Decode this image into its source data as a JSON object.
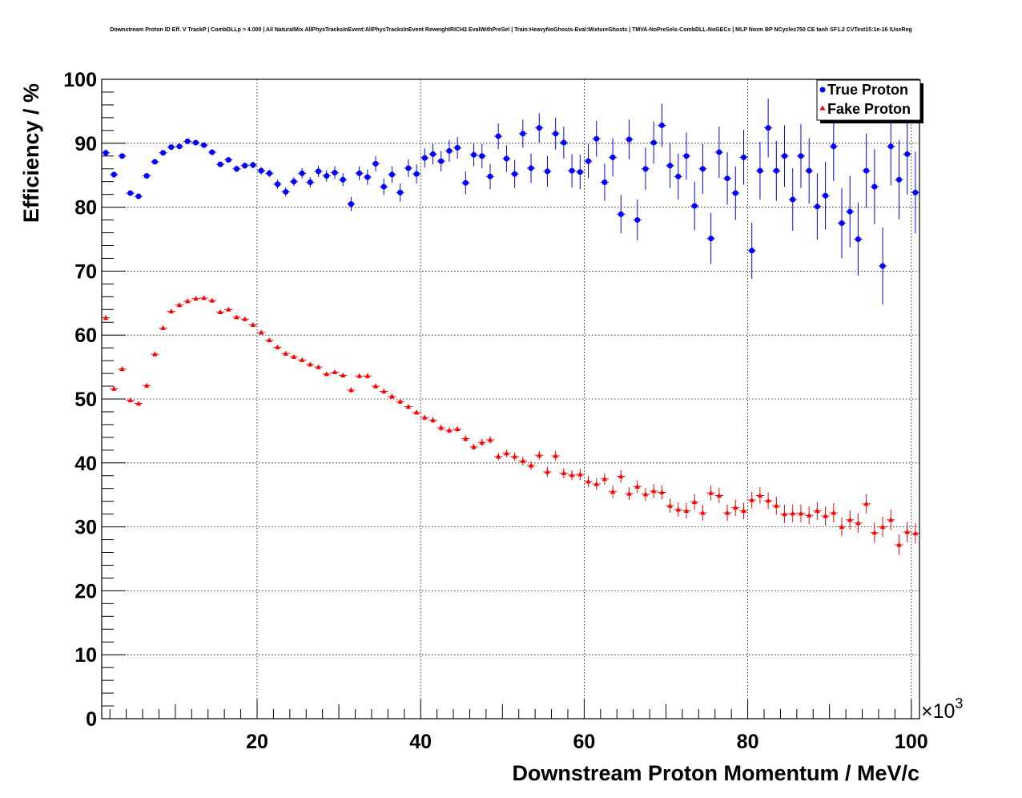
{
  "chart_data": {
    "type": "scatter",
    "title": "Downstream Proton ID Eff. V TrackP | CombDLLp > 4.000 | All NaturalMix AllPhysTracksInEvent:AllPhysTracksInEvent ReweightRICH2 EvalWithPreSel | Train:HeavyNoGhosts-Eval:MixtureGhosts | TMVA-NoPreSels-CombDLL-NoGECs | MLP Norm BP NCycles750 CE tanh SF1.2 CVTest15:1e-16 !UseReg",
    "xlabel": "Downstream Proton Momentum / MeV/c",
    "ylabel": "Efficiency / %",
    "x_multiplier": "×10",
    "x_multiplier_exp": "3",
    "xlim": [
      1000,
      101000
    ],
    "ylim": [
      0,
      100
    ],
    "x_ticks": [
      20000,
      40000,
      60000,
      80000,
      100000
    ],
    "x_tick_labels": [
      "20",
      "40",
      "60",
      "80",
      "100"
    ],
    "y_ticks": [
      0,
      10,
      20,
      30,
      40,
      50,
      60,
      70,
      80,
      90,
      100
    ],
    "y_tick_labels": [
      "0",
      "10",
      "20",
      "30",
      "40",
      "50",
      "60",
      "70",
      "80",
      "90",
      "100"
    ],
    "grid": true,
    "legend_position": "top-right",
    "series": [
      {
        "name": "True Proton",
        "color": "#0000ff",
        "marker": "circle",
        "x": [
          1500,
          2500,
          3500,
          4500,
          5500,
          6500,
          7500,
          8500,
          9500,
          10500,
          11500,
          12500,
          13500,
          14500,
          15500,
          16500,
          17500,
          18500,
          19500,
          20500,
          21500,
          22500,
          23500,
          24500,
          25500,
          26500,
          27500,
          28500,
          29500,
          30500,
          31500,
          32500,
          33500,
          34500,
          35500,
          36500,
          37500,
          38500,
          39500,
          40500,
          41500,
          42500,
          43500,
          44500,
          45500,
          46500,
          47500,
          48500,
          49500,
          50500,
          51500,
          52500,
          53500,
          54500,
          55500,
          56500,
          57500,
          58500,
          59500,
          60500,
          61500,
          62500,
          63500,
          64500,
          65500,
          66500,
          67500,
          68500,
          69500,
          70500,
          71500,
          72500,
          73500,
          74500,
          75500,
          76500,
          77500,
          78500,
          79500,
          80500,
          81500,
          82500,
          83500,
          84500,
          85500,
          86500,
          87500,
          88500,
          89500,
          90500,
          91500,
          92500,
          93500,
          94500,
          95500,
          96500,
          97500,
          98500,
          99500,
          100500
        ],
        "y": [
          88.5,
          85.1,
          88.0,
          82.2,
          81.7,
          84.9,
          87.1,
          88.5,
          89.4,
          89.5,
          90.3,
          90.1,
          89.7,
          88.6,
          86.7,
          87.4,
          86.0,
          86.5,
          86.6,
          85.7,
          85.3,
          83.6,
          82.4,
          84.0,
          85.3,
          83.9,
          85.6,
          84.9,
          85.4,
          84.3,
          80.5,
          85.3,
          84.7,
          86.8,
          83.2,
          85.1,
          82.3,
          86.1,
          85.2,
          87.7,
          88.3,
          87.2,
          88.8,
          89.3,
          83.8,
          88.2,
          88.0,
          84.8,
          91.1,
          87.6,
          85.2,
          91.5,
          86.1,
          92.4,
          85.6,
          91.5,
          90.1,
          85.7,
          85.5,
          87.2,
          90.7,
          83.9,
          87.8,
          78.9,
          90.6,
          78.0,
          86.0,
          90.1,
          92.8,
          86.5,
          84.8,
          88.0,
          80.2,
          86.0,
          75.1,
          88.6,
          84.5,
          82.2,
          87.8,
          73.2,
          85.7,
          92.4,
          85.7,
          88.0,
          81.2,
          88.0,
          85.7,
          80.1,
          81.8,
          89.5,
          77.5,
          79.3,
          75.0,
          85.7,
          83.2,
          70.8,
          89.5,
          84.3,
          88.3,
          82.3
        ],
        "yerr": [
          0.5,
          0.5,
          0.4,
          0.4,
          0.4,
          0.4,
          0.3,
          0.3,
          0.3,
          0.3,
          0.3,
          0.3,
          0.3,
          0.4,
          0.4,
          0.4,
          0.5,
          0.5,
          0.5,
          0.6,
          0.6,
          0.7,
          0.7,
          0.7,
          0.8,
          0.8,
          0.9,
          0.9,
          1.0,
          1.0,
          1.1,
          1.1,
          1.2,
          1.2,
          1.3,
          1.3,
          1.4,
          1.4,
          1.5,
          1.5,
          1.6,
          1.6,
          1.7,
          1.7,
          1.8,
          1.8,
          1.9,
          2.0,
          2.0,
          2.1,
          2.2,
          2.2,
          2.3,
          2.3,
          2.4,
          2.5,
          2.5,
          2.6,
          2.7,
          2.7,
          2.8,
          2.9,
          3.0,
          3.0,
          3.1,
          3.2,
          3.3,
          3.3,
          3.4,
          3.5,
          3.6,
          3.7,
          3.8,
          3.9,
          4.0,
          4.0,
          4.1,
          4.2,
          4.3,
          4.4,
          4.5,
          4.6,
          4.7,
          4.8,
          4.9,
          5.0,
          5.1,
          5.2,
          5.3,
          5.4,
          5.5,
          5.6,
          5.7,
          5.8,
          5.9,
          6.0,
          6.1,
          6.2,
          6.3,
          6.4
        ]
      },
      {
        "name": "Fake Proton",
        "color": "#ff0000",
        "marker": "triangle",
        "x": [
          1500,
          2500,
          3500,
          4500,
          5500,
          6500,
          7500,
          8500,
          9500,
          10500,
          11500,
          12500,
          13500,
          14500,
          15500,
          16500,
          17500,
          18500,
          19500,
          20500,
          21500,
          22500,
          23500,
          24500,
          25500,
          26500,
          27500,
          28500,
          29500,
          30500,
          31500,
          32500,
          33500,
          34500,
          35500,
          36500,
          37500,
          38500,
          39500,
          40500,
          41500,
          42500,
          43500,
          44500,
          45500,
          46500,
          47500,
          48500,
          49500,
          50500,
          51500,
          52500,
          53500,
          54500,
          55500,
          56500,
          57500,
          58500,
          59500,
          60500,
          61500,
          62500,
          63500,
          64500,
          65500,
          66500,
          67500,
          68500,
          69500,
          70500,
          71500,
          72500,
          73500,
          74500,
          75500,
          76500,
          77500,
          78500,
          79500,
          80500,
          81500,
          82500,
          83500,
          84500,
          85500,
          86500,
          87500,
          88500,
          89500,
          90500,
          91500,
          92500,
          93500,
          94500,
          95500,
          96500,
          97500,
          98500,
          99500,
          100500
        ],
        "y": [
          62.7,
          51.6,
          54.7,
          49.8,
          49.3,
          52.1,
          57.0,
          61.1,
          63.7,
          64.7,
          65.3,
          65.7,
          65.8,
          65.4,
          63.6,
          64.0,
          62.8,
          62.5,
          61.6,
          60.4,
          59.2,
          58.1,
          57.1,
          56.6,
          56.1,
          55.4,
          55.0,
          53.9,
          54.2,
          53.7,
          51.4,
          53.6,
          53.6,
          52.0,
          51.2,
          50.4,
          49.6,
          48.8,
          47.9,
          47.1,
          46.7,
          45.5,
          45.1,
          45.3,
          43.8,
          42.5,
          43.2,
          43.6,
          41.0,
          41.5,
          41.0,
          40.3,
          39.6,
          41.2,
          38.6,
          41.1,
          38.4,
          38.1,
          38.2,
          37.1,
          36.7,
          37.5,
          35.5,
          37.9,
          35.2,
          36.3,
          35.1,
          35.6,
          35.4,
          33.3,
          32.7,
          32.5,
          33.9,
          32.2,
          35.3,
          34.9,
          32.2,
          33.0,
          32.5,
          34.2,
          34.9,
          34.1,
          33.3,
          32.0,
          32.1,
          32.1,
          31.8,
          32.5,
          31.7,
          32.2,
          30.0,
          31.1,
          30.6,
          33.6,
          29.1,
          30.0,
          31.1,
          27.2,
          29.2,
          29.0
        ],
        "yerr": [
          0.4,
          0.3,
          0.3,
          0.3,
          0.3,
          0.3,
          0.3,
          0.3,
          0.3,
          0.3,
          0.3,
          0.3,
          0.3,
          0.3,
          0.3,
          0.3,
          0.3,
          0.3,
          0.3,
          0.3,
          0.3,
          0.3,
          0.3,
          0.3,
          0.3,
          0.3,
          0.3,
          0.3,
          0.3,
          0.3,
          0.4,
          0.4,
          0.4,
          0.4,
          0.4,
          0.4,
          0.4,
          0.4,
          0.4,
          0.4,
          0.5,
          0.5,
          0.5,
          0.5,
          0.5,
          0.5,
          0.6,
          0.6,
          0.6,
          0.6,
          0.7,
          0.7,
          0.7,
          0.7,
          0.8,
          0.8,
          0.8,
          0.8,
          0.9,
          0.9,
          0.9,
          0.9,
          1.0,
          1.0,
          1.0,
          1.0,
          1.0,
          1.1,
          1.1,
          1.1,
          1.1,
          1.2,
          1.2,
          1.2,
          1.2,
          1.2,
          1.3,
          1.3,
          1.3,
          1.3,
          1.3,
          1.3,
          1.4,
          1.4,
          1.4,
          1.4,
          1.4,
          1.4,
          1.5,
          1.5,
          1.5,
          1.5,
          1.5,
          1.5,
          1.6,
          1.6,
          1.6,
          1.6,
          1.6,
          1.6
        ]
      }
    ]
  }
}
